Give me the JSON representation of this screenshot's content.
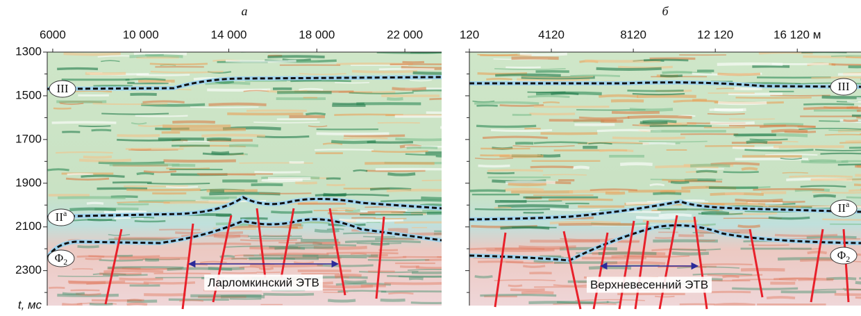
{
  "chart_data": [
    {
      "type": "seismic",
      "title": "а",
      "xlim": [
        5750,
        23670
      ],
      "xticks": [
        6000,
        {
          "value": 10000,
          "label": "10 000"
        },
        {
          "value": 14000,
          "label": "14 000"
        },
        {
          "value": 18000,
          "label": "18 000"
        },
        {
          "value": 22000,
          "label": "22 000"
        }
      ],
      "ylim": [
        1300,
        2460
      ],
      "yticks": [
        1300,
        1500,
        1700,
        1900,
        2100,
        2300
      ],
      "y_inverted": true,
      "y_label": "t, мс",
      "horizons": [
        {
          "label": "III"
        },
        {
          "label": "II",
          "sup": "а"
        },
        {
          "label": "Φ",
          "sub": "2"
        }
      ],
      "annotation": "Ларломкинский ЭТВ"
    },
    {
      "type": "seismic",
      "title": "б",
      "xlim": [
        120,
        19230
      ],
      "xticks": [
        120,
        4120,
        8120,
        {
          "value": 12120,
          "label": "12 120"
        },
        {
          "value": 16120,
          "label": "16 120 м"
        }
      ],
      "horizons": [
        {
          "label": "III"
        },
        {
          "label": "II",
          "sup": "а"
        },
        {
          "label": "Φ",
          "sub": "2"
        }
      ],
      "annotation": "Верхневесенний ЭТВ"
    }
  ]
}
